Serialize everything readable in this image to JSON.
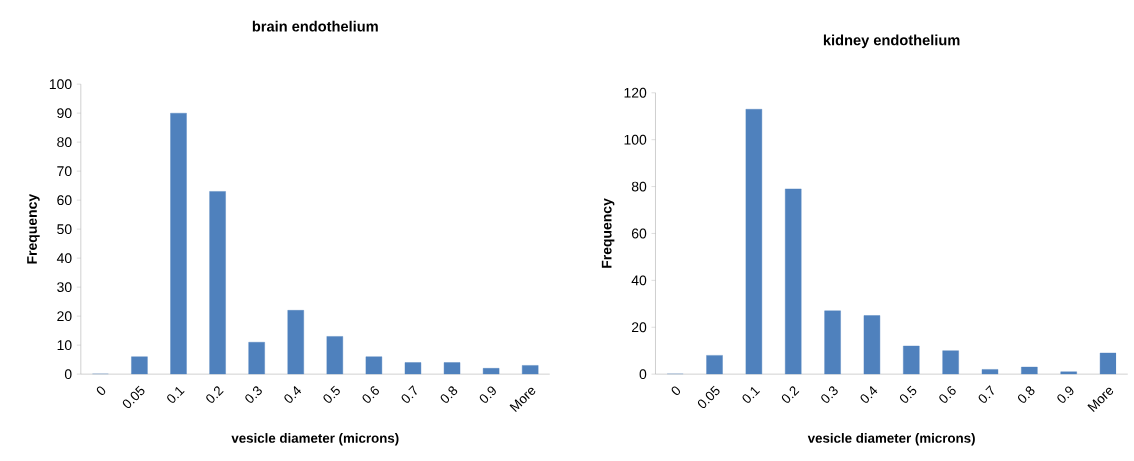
{
  "chart_data": [
    {
      "type": "bar",
      "title": "brain endothelium",
      "xlabel": "vesicle diameter (microns)",
      "ylabel": "Frequency",
      "categories": [
        "0",
        "0.05",
        "0.1",
        "0.2",
        "0.3",
        "0.4",
        "0.5",
        "0.6",
        "0.7",
        "0.8",
        "0.9",
        "More"
      ],
      "values": [
        0,
        6,
        90,
        63,
        11,
        22,
        13,
        6,
        4,
        4,
        2,
        3
      ],
      "color": "#4f81bd",
      "ylim": [
        0,
        100
      ],
      "yticks": [
        0,
        10,
        20,
        30,
        40,
        50,
        60,
        70,
        80,
        90,
        100
      ],
      "grid": false
    },
    {
      "type": "bar",
      "title": "kidney endothelium",
      "xlabel": "vesicle diameter (microns)",
      "ylabel": "Frequency",
      "categories": [
        "0",
        "0.05",
        "0.1",
        "0.2",
        "0.3",
        "0.4",
        "0.5",
        "0.6",
        "0.7",
        "0.8",
        "0.9",
        "More"
      ],
      "values": [
        0,
        8,
        113,
        79,
        27,
        25,
        12,
        10,
        2,
        3,
        1,
        9
      ],
      "color": "#4f81bd",
      "ylim": [
        0,
        120
      ],
      "yticks": [
        0,
        20,
        40,
        60,
        80,
        100,
        120
      ],
      "grid": false
    }
  ]
}
